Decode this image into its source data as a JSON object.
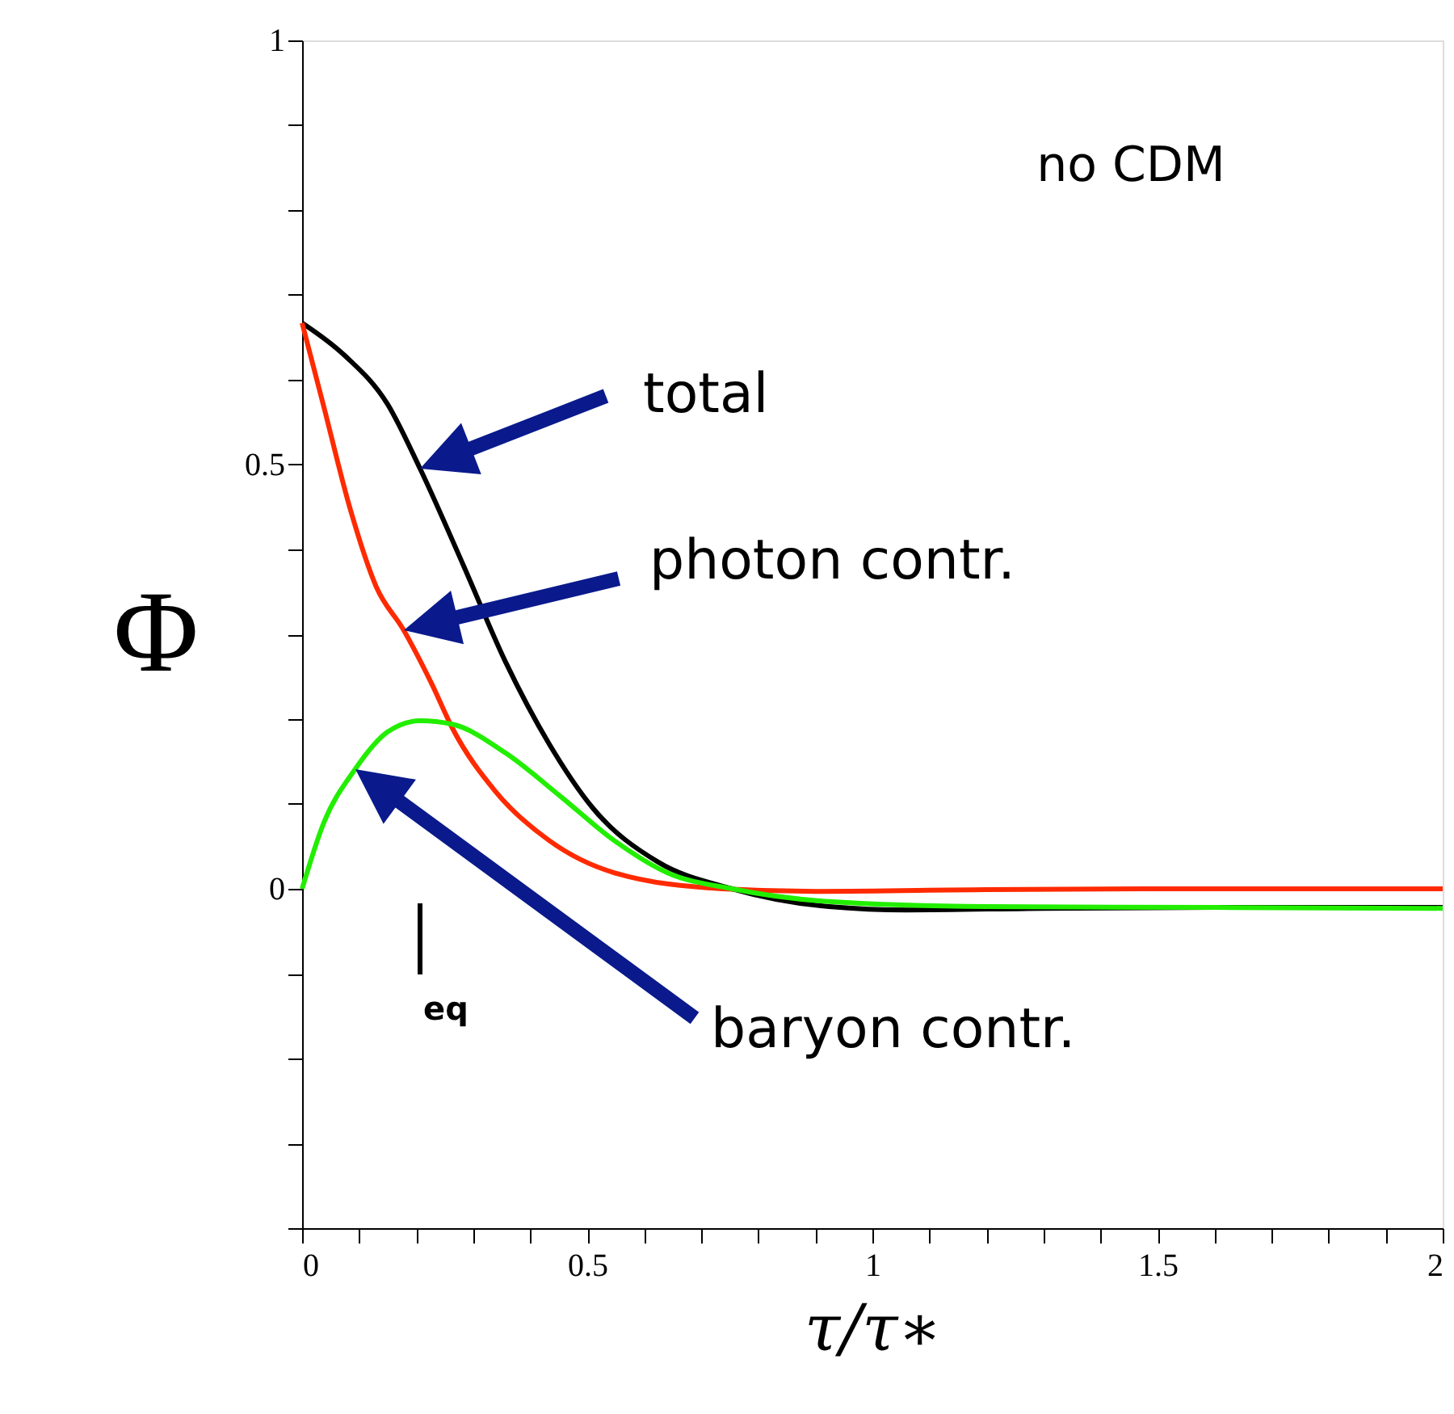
{
  "chart_data": {
    "type": "line",
    "xlabel": "τ/τ∗",
    "ylabel": "Φ",
    "xlim": [
      0,
      2
    ],
    "ylim": [
      -0.4,
      1
    ],
    "xticks": [
      0,
      {
        "value": 0.1,
        "label": null
      },
      {
        "value": 0.2,
        "label": null
      },
      {
        "value": 0.3,
        "label": null
      },
      {
        "value": 0.4,
        "label": null
      },
      0.5,
      {
        "value": 0.6,
        "label": null
      },
      {
        "value": 0.7,
        "label": null
      },
      {
        "value": 0.8,
        "label": null
      },
      {
        "value": 0.9,
        "label": null
      },
      1,
      {
        "value": 1.1,
        "label": null
      },
      {
        "value": 1.2,
        "label": null
      },
      {
        "value": 1.3,
        "label": null
      },
      {
        "value": 1.4,
        "label": null
      },
      1.5,
      {
        "value": 1.6,
        "label": null
      },
      {
        "value": 1.7,
        "label": null
      },
      {
        "value": 1.8,
        "label": null
      },
      {
        "value": 1.9,
        "label": null
      },
      2
    ],
    "yticks": [
      {
        "value": -0.4,
        "label": null
      },
      {
        "value": -0.3,
        "label": null
      },
      {
        "value": -0.2,
        "label": null
      },
      {
        "value": -0.1,
        "label": null
      },
      0,
      {
        "value": 0.1,
        "label": null
      },
      {
        "value": 0.2,
        "label": null
      },
      {
        "value": 0.3,
        "label": null
      },
      {
        "value": 0.4,
        "label": null
      },
      0.5,
      {
        "value": 0.6,
        "label": null
      },
      {
        "value": 0.7,
        "label": null
      },
      {
        "value": 0.8,
        "label": null
      },
      {
        "value": 0.9,
        "label": null
      },
      1
    ],
    "grid": false,
    "line_style": "solid",
    "marker": "none",
    "series": [
      {
        "color": "#000000",
        "x": [
          0,
          0.074,
          0.15,
          0.207,
          0.283,
          0.357,
          0.433,
          0.51,
          0.623,
          0.754,
          0.924,
          1.06,
          1.3,
          1.6,
          2
        ],
        "values": [
          0.667,
          0.629,
          0.571,
          0.495,
          0.381,
          0.267,
          0.171,
          0.095,
          0.032,
          0,
          -0.021,
          -0.025,
          -0.023,
          -0.022,
          -0.022
        ]
      },
      {
        "color": "#ff2a00",
        "x": [
          0,
          0.037,
          0.085,
          0.13,
          0.178,
          0.227,
          0.263,
          0.34,
          0.433,
          0.547,
          0.737,
          0.9,
          1.2,
          1.6,
          2
        ],
        "values": [
          0.667,
          0.571,
          0.446,
          0.356,
          0.305,
          0.242,
          0.19,
          0.114,
          0.057,
          0.019,
          0,
          -0.003,
          -0.001,
          0,
          0
        ]
      },
      {
        "color": "#22ee00",
        "x": [
          0,
          0.037,
          0.093,
          0.15,
          0.207,
          0.263,
          0.357,
          0.453,
          0.547,
          0.64,
          0.754,
          0.924,
          1.2,
          1.6,
          2
        ],
        "values": [
          0,
          0.076,
          0.141,
          0.185,
          0.198,
          0.194,
          0.16,
          0.109,
          0.057,
          0.019,
          0,
          -0.015,
          -0.021,
          -0.022,
          -0.023
        ]
      }
    ],
    "annotations": [
      "no CDM",
      "total",
      "photon contr.",
      "baryon contr.",
      "eq"
    ]
  }
}
